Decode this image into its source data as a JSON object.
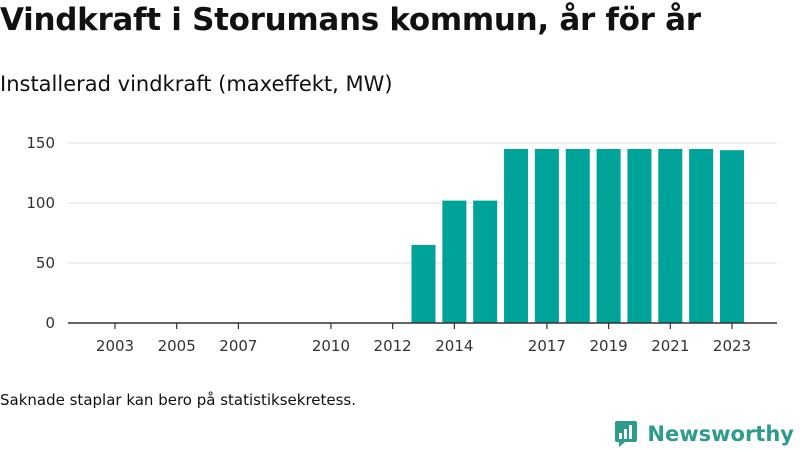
{
  "header": {
    "title": "Vindkraft i Storumans kommun, år för år",
    "subtitle": "Installerad vindkraft (maxeffekt, MW)"
  },
  "footer": {
    "note": "Saknade staplar kan bero på statistiksekretess.",
    "brand": "Newsworthy"
  },
  "colors": {
    "bar": "#00a39a",
    "grid": "#e0e0e0",
    "axis": "#333333",
    "brand": "#2e9c8c"
  },
  "chart_data": {
    "type": "bar",
    "x": [
      2003,
      2004,
      2005,
      2006,
      2007,
      2008,
      2009,
      2010,
      2011,
      2012,
      2013,
      2014,
      2015,
      2016,
      2017,
      2018,
      2019,
      2020,
      2021,
      2022,
      2023
    ],
    "values": [
      0,
      0,
      0,
      0,
      0,
      0,
      0,
      0,
      0,
      0,
      65,
      102,
      102,
      145,
      145,
      145,
      145,
      145,
      145,
      145,
      144
    ],
    "x_tick_labels": [
      2003,
      2005,
      2007,
      2010,
      2012,
      2014,
      2017,
      2019,
      2021,
      2023
    ],
    "y_ticks": [
      0,
      50,
      100,
      150
    ],
    "ylim": [
      0,
      150
    ],
    "grid": true,
    "xlabel": "",
    "ylabel": ""
  }
}
